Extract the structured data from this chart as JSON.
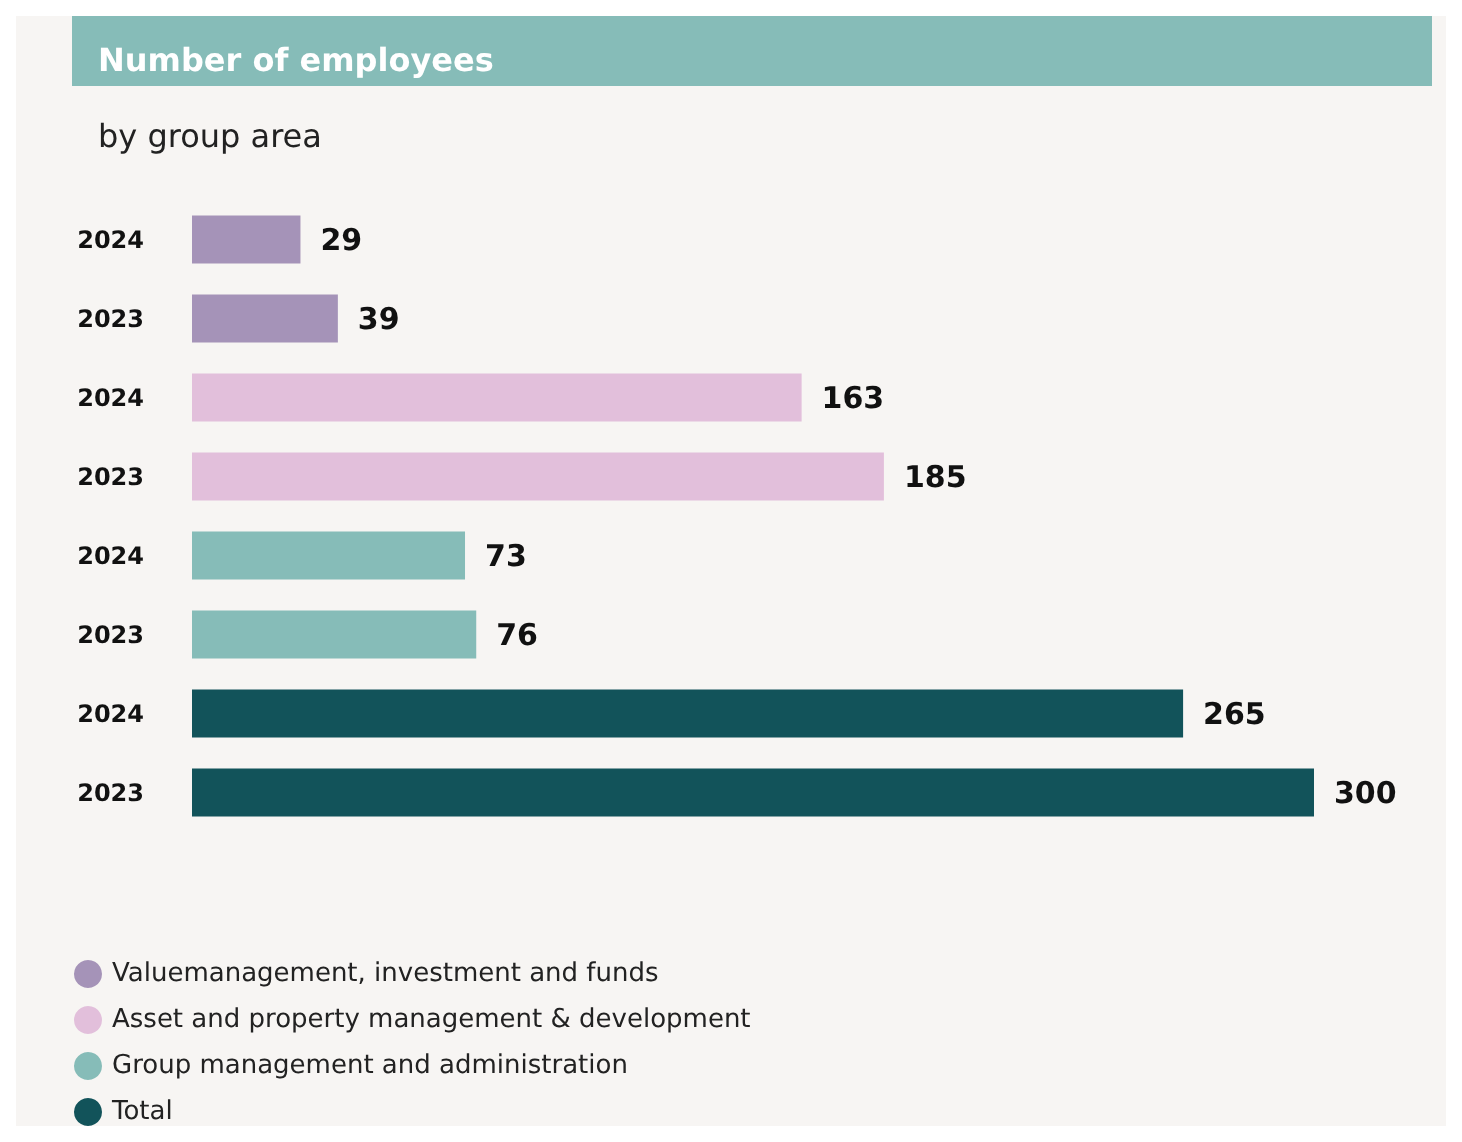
{
  "chart_data": {
    "type": "bar",
    "orientation": "horizontal",
    "stacked": true,
    "title": "Number of employees",
    "subtitle": "by group area",
    "categories": [
      "2024",
      "2023",
      "2024",
      "2023",
      "2024",
      "2023",
      "2024",
      "2023"
    ],
    "series": [
      {
        "name": "Valuemanagement, investment and funds",
        "color": "#a593b8",
        "values": [
          29,
          39,
          null,
          null,
          null,
          null,
          null,
          null
        ]
      },
      {
        "name": "Asset and property management & development",
        "color": "#e2bfdb",
        "values": [
          null,
          null,
          163,
          185,
          null,
          null,
          null,
          null
        ]
      },
      {
        "name": "Group management and administration",
        "color": "#86bcb8",
        "values": [
          null,
          null,
          null,
          null,
          73,
          76,
          null,
          null
        ]
      },
      {
        "name": "Total",
        "color": "#12535a",
        "values": [
          null,
          null,
          null,
          null,
          null,
          null,
          265,
          300
        ]
      }
    ],
    "data_labels": true,
    "legend": "bottom left"
  }
}
